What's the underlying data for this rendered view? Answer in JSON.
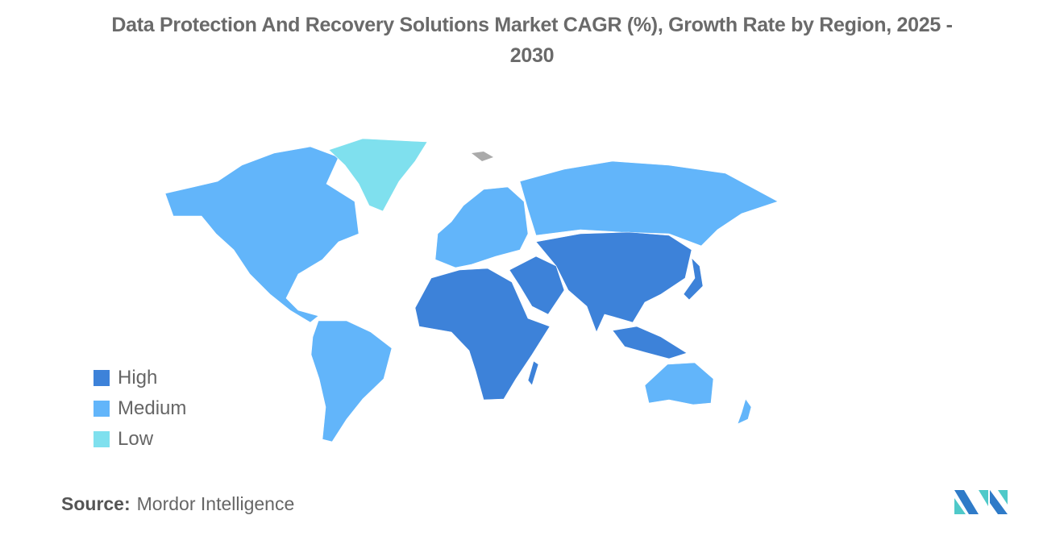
{
  "title": {
    "line1": "Data Protection And Recovery Solutions Market CAGR (%), Growth Rate by Region, 2025 -",
    "line2": "2030"
  },
  "legend": [
    {
      "label": "High",
      "color": "#3d82d9"
    },
    {
      "label": "Medium",
      "color": "#62b5fa"
    },
    {
      "label": "Low",
      "color": "#7fe0ee"
    }
  ],
  "regions": {
    "north_america": "Medium",
    "greenland": "Low",
    "south_america": "Medium",
    "europe": "Medium",
    "russia": "Medium",
    "africa": "High",
    "middle_east": "High",
    "asia": "High",
    "southeast_asia": "High",
    "japan": "High",
    "australia": "Medium",
    "new_zealand": "Medium"
  },
  "no_data_color": "#aaaaaa",
  "source": {
    "label": "Source:",
    "value": "Mordor Intelligence"
  },
  "logo_colors": [
    "#2f7bc8",
    "#4fc9c9"
  ]
}
